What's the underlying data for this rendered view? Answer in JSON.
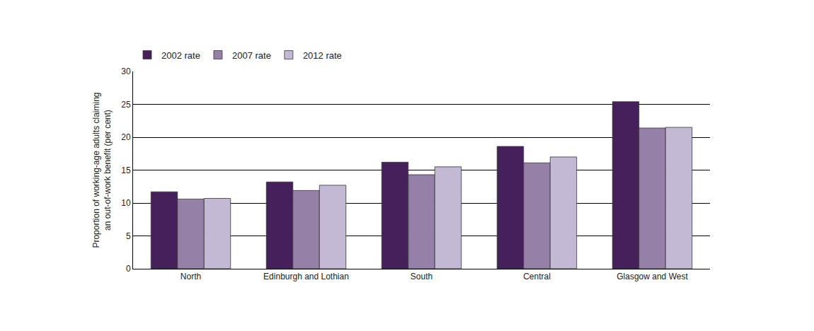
{
  "chart_data": {
    "type": "bar",
    "y_label": "Proportion of working-age adults claiming\nan out-of-work benefit (per cent)",
    "categories": [
      "North",
      "Edinburgh and Lothian",
      "South",
      "Central",
      "Glasgow and West"
    ],
    "series": [
      {
        "name": "2002 rate",
        "color": "#45205a",
        "values": [
          11.7,
          13.2,
          16.2,
          18.6,
          25.4
        ]
      },
      {
        "name": "2007 rate",
        "color": "#9580a8",
        "values": [
          10.6,
          11.9,
          14.3,
          16.1,
          21.4
        ]
      },
      {
        "name": "2012 rate",
        "color": "#c4b9d4",
        "values": [
          10.7,
          12.7,
          15.5,
          17.0,
          21.5
        ]
      }
    ],
    "ylim": [
      0,
      30
    ],
    "yticks": [
      0,
      5,
      10,
      15,
      20,
      25,
      30
    ],
    "grid": true,
    "legend": "top-left"
  }
}
